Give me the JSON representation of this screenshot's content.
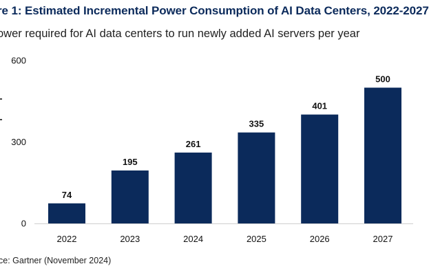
{
  "header": {
    "title": "re 1: Estimated Incremental Power Consumption of AI Data Centers, 2022-2027",
    "subtitle": "ower required for AI data centers to run newly added AI servers per year",
    "source": "ce: Gartner (November 2024)"
  },
  "colors": {
    "title": "#0b2a5b",
    "bar": "#0b2a5b",
    "axis": "#cfcfcf",
    "label": "#111111",
    "tick": "#444444"
  },
  "chart_data": {
    "type": "bar",
    "title": "re 1: Estimated Incremental Power Consumption of AI Data Centers, 2022-2027",
    "subtitle": "ower required for AI data centers to run newly added AI servers per year",
    "xlabel": "",
    "ylabel": "",
    "categories": [
      "2022",
      "2023",
      "2024",
      "2025",
      "2026",
      "2027"
    ],
    "values": [
      74,
      195,
      261,
      335,
      401,
      500
    ],
    "ylim": [
      0,
      600
    ],
    "yticks": [
      0,
      300,
      600
    ],
    "grid": false,
    "legend": "none",
    "data_labels": true
  }
}
